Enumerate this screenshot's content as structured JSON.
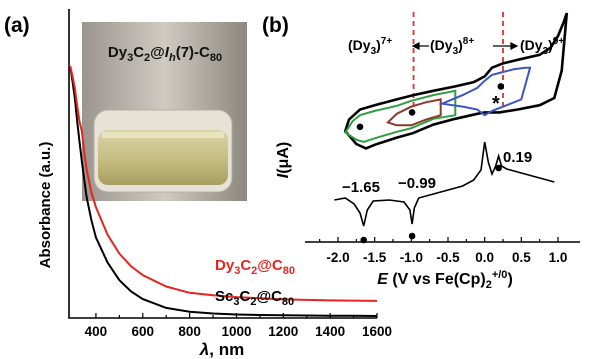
{
  "chart_data": [
    {
      "panel": "(a)",
      "type": "line",
      "xlabel": "λ, nm",
      "ylabel": "Absorbance (a.u.)",
      "xticks": [
        400,
        600,
        800,
        1000,
        1200,
        1400,
        1600
      ],
      "xlim": [
        285,
        1600
      ],
      "inset_label": "Dy3C2@Ih(7)-C80",
      "series": [
        {
          "name": "Dy3C2@C80",
          "color": "#e8241f",
          "x": [
            290,
            300,
            310,
            320,
            330,
            340,
            350,
            360,
            380,
            400,
            450,
            500,
            550,
            600,
            700,
            800,
            900,
            1000,
            1100,
            1200,
            1300,
            1400,
            1500,
            1600
          ],
          "y": [
            1.0,
            0.96,
            0.91,
            0.84,
            0.78,
            0.74,
            0.66,
            0.59,
            0.5,
            0.44,
            0.33,
            0.255,
            0.205,
            0.17,
            0.125,
            0.1,
            0.09,
            0.083,
            0.078,
            0.074,
            0.072,
            0.07,
            0.069,
            0.068
          ]
        },
        {
          "name": "Sc3C2@C80",
          "color": "#000000",
          "x": [
            290,
            300,
            310,
            320,
            330,
            340,
            350,
            360,
            380,
            400,
            450,
            500,
            550,
            600,
            700,
            800,
            900,
            1000,
            1100,
            1200,
            1300,
            1400,
            1500,
            1600
          ],
          "y": [
            1.0,
            0.94,
            0.87,
            0.78,
            0.7,
            0.62,
            0.55,
            0.48,
            0.39,
            0.32,
            0.22,
            0.15,
            0.105,
            0.075,
            0.04,
            0.025,
            0.018,
            0.014,
            0.012,
            0.011,
            0.01,
            0.009,
            0.009,
            0.008
          ]
        }
      ],
      "series_labels": {
        "dy": {
          "pre": "Dy",
          "s1": "3",
          "mid": "C",
          "s2": "2",
          "at": "@C",
          "s3": "80"
        },
        "sc": {
          "pre": "Sc",
          "s1": "3",
          "mid": "C",
          "s2": "2",
          "at": "@C",
          "s3": "80"
        }
      }
    },
    {
      "panel": "(b)",
      "type": "line",
      "xlabel": "E (V vs Fe(Cp)2+/0)",
      "xlabel_parts": {
        "e": "E",
        "mid": " (V vs Fe(Cp)",
        "sub": "2",
        "sup": "+/0",
        "close": ")"
      },
      "ylabel": "I(μA)",
      "ylabel_parts": {
        "i": "I",
        "rest": "(μA)"
      },
      "xticks": [
        -2.0,
        -1.5,
        -1.0,
        -0.5,
        0.0,
        0.5,
        1.0
      ],
      "xtick_labels": [
        "-2.0",
        "-1.5",
        "-1.0",
        "-0.5",
        "0.0",
        "0.5",
        "1.0"
      ],
      "xlim": [
        -2.45,
        1.3
      ],
      "dashed_lines_x": [
        -0.97,
        0.25
      ],
      "dashed_color": "#e0302a",
      "regions": [
        {
          "base": "(Dy",
          "sub": "3",
          "close": ")",
          "sup": "7+"
        },
        {
          "base": "(Dy",
          "sub": "3",
          "close": ")",
          "sup": "8+"
        },
        {
          "base": "(Dy",
          "sub": "3",
          "close": ")",
          "sup": "9+"
        }
      ],
      "annotations": [
        "−1.65",
        "−0.99",
        "0.19",
        "*"
      ],
      "cv_black": {
        "name": "CV full",
        "color": "#000000",
        "upper": {
          "x": [
            -1.9,
            -1.85,
            -1.7,
            -1.5,
            -1.2,
            -0.97,
            -0.7,
            -0.4,
            -0.15,
            0.0,
            0.1,
            0.25,
            0.45,
            0.75,
            0.9,
            1.0,
            1.08,
            1.12
          ],
          "y": [
            0.36,
            0.52,
            0.66,
            0.72,
            0.8,
            0.86,
            0.92,
            0.98,
            1.04,
            1.12,
            1.24,
            1.3,
            1.35,
            1.42,
            1.52,
            1.68,
            1.88,
            2.0
          ]
        },
        "lower": {
          "x": [
            -1.9,
            -1.75,
            -1.62,
            -1.5,
            -1.2,
            -0.98,
            -0.7,
            -0.4,
            -0.1,
            0.0,
            0.2,
            0.45,
            0.75,
            0.95,
            1.05,
            1.12
          ],
          "y": [
            0.36,
            0.18,
            0.12,
            0.17,
            0.27,
            0.33,
            0.45,
            0.53,
            0.6,
            0.62,
            0.62,
            0.66,
            0.72,
            0.82,
            1.2,
            2.0
          ]
        }
      },
      "cv_green": {
        "name": "CV to -1.9 V",
        "color": "#2ea043",
        "upper": {
          "x": [
            -1.9,
            -1.8,
            -1.7,
            -1.5,
            -1.2,
            -1.0,
            -0.7,
            -0.4
          ],
          "y": [
            0.34,
            0.5,
            0.58,
            0.64,
            0.71,
            0.78,
            0.86,
            0.92
          ]
        },
        "lower": {
          "x": [
            -1.9,
            -1.75,
            -1.65,
            -1.5,
            -1.2,
            -1.0,
            -0.7,
            -0.4
          ],
          "y": [
            0.34,
            0.24,
            0.21,
            0.26,
            0.35,
            0.4,
            0.53,
            0.58
          ]
        }
      },
      "cv_brown": {
        "name": "CV to -1.3 V",
        "color": "#8b3a2a",
        "upper": {
          "x": [
            -1.32,
            -1.2,
            -1.0,
            -0.8,
            -0.6
          ],
          "y": [
            0.48,
            0.6,
            0.7,
            0.76,
            0.8
          ]
        },
        "lower": {
          "x": [
            -1.32,
            -1.2,
            -1.0,
            -0.8,
            -0.6
          ],
          "y": [
            0.48,
            0.44,
            0.44,
            0.52,
            0.58
          ]
        }
      },
      "cv_blue": {
        "name": "CV to +0.6 V",
        "color": "#3b55c8",
        "upper": {
          "x": [
            -0.58,
            -0.3,
            -0.1,
            0.0,
            0.1,
            0.25,
            0.4,
            0.55,
            0.62
          ],
          "y": [
            0.74,
            0.86,
            0.96,
            1.06,
            1.14,
            1.18,
            1.22,
            1.24,
            1.24
          ]
        },
        "lower": {
          "x": [
            -0.58,
            -0.3,
            -0.1,
            0.0,
            0.1,
            0.3,
            0.5,
            0.62
          ],
          "y": [
            0.74,
            0.7,
            0.66,
            0.58,
            0.64,
            0.72,
            0.8,
            1.24
          ]
        }
      },
      "dpv": {
        "name": "DPV",
        "color": "#000000",
        "x": [
          -2.05,
          -1.9,
          -1.78,
          -1.7,
          -1.65,
          -1.6,
          -1.52,
          -1.3,
          -1.1,
          -1.02,
          -0.99,
          -0.96,
          -0.9,
          -0.6,
          -0.3,
          -0.15,
          -0.05,
          0.0,
          0.05,
          0.1,
          0.15,
          0.19,
          0.23,
          0.3,
          0.4,
          0.55,
          0.7,
          0.85,
          0.95
        ],
        "y": [
          -0.32,
          -0.3,
          -0.36,
          -0.45,
          -0.58,
          -0.42,
          -0.33,
          -0.32,
          -0.34,
          -0.42,
          -0.56,
          -0.4,
          -0.3,
          -0.24,
          -0.18,
          -0.12,
          -0.02,
          0.26,
          0.06,
          -0.06,
          0.02,
          0.12,
          0.02,
          -0.01,
          -0.03,
          -0.06,
          -0.09,
          -0.12,
          -0.14
        ]
      }
    }
  ]
}
